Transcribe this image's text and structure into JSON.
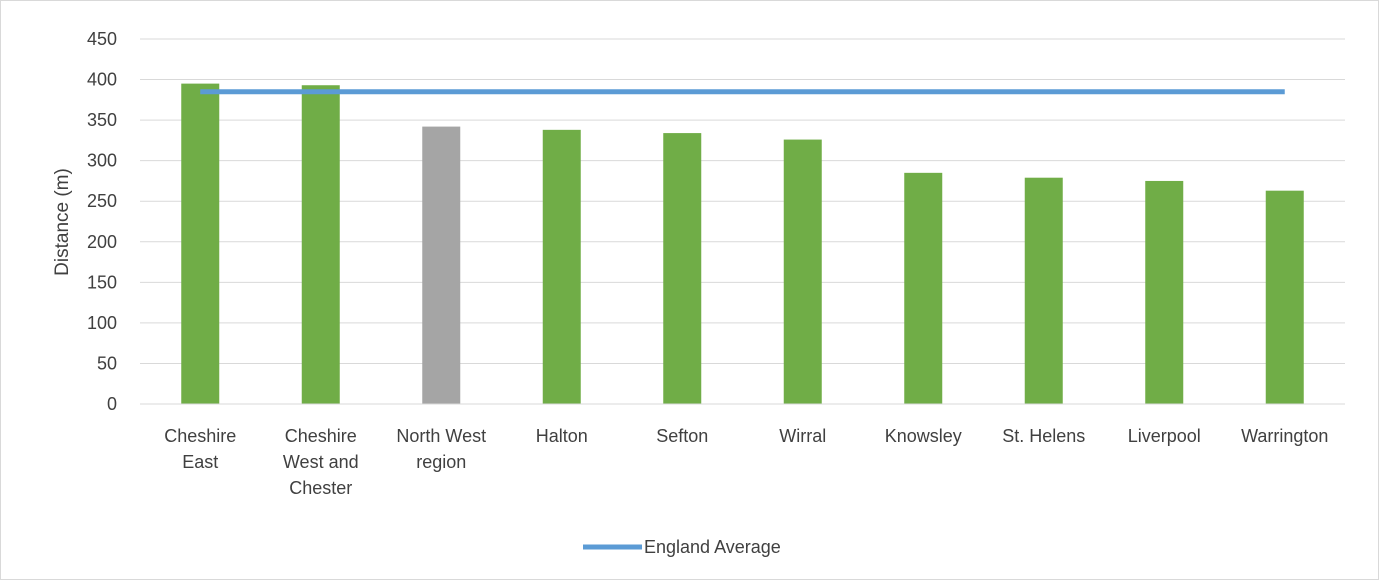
{
  "chart_data": {
    "type": "bar",
    "ylabel": "Distance (m)",
    "xlabel": "",
    "ylim": [
      0,
      450
    ],
    "yticks": [
      0,
      50,
      100,
      150,
      200,
      250,
      300,
      350,
      400,
      450
    ],
    "grid": true,
    "legend_position": "bottom",
    "categories": [
      [
        "Cheshire",
        "East"
      ],
      [
        "Cheshire",
        "West and",
        "Chester"
      ],
      [
        "North West",
        "region"
      ],
      [
        "Halton"
      ],
      [
        "Sefton"
      ],
      [
        "Wirral"
      ],
      [
        "Knowsley"
      ],
      [
        "St. Helens"
      ],
      [
        "Liverpool"
      ],
      [
        "Warrington"
      ]
    ],
    "values": [
      395,
      393,
      342,
      338,
      334,
      326,
      285,
      279,
      275,
      263
    ],
    "bar_colors": [
      "#70ad47",
      "#70ad47",
      "#a5a5a5",
      "#70ad47",
      "#70ad47",
      "#70ad47",
      "#70ad47",
      "#70ad47",
      "#70ad47",
      "#70ad47"
    ],
    "reference_line": {
      "name": "England Average",
      "value": 385,
      "color": "#5b9bd5"
    }
  }
}
